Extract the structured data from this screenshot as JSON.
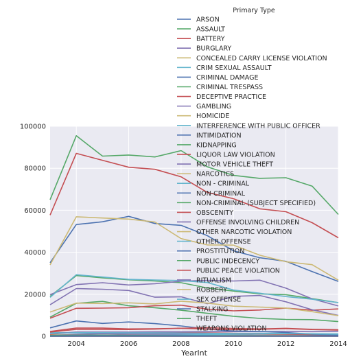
{
  "chart_data": {
    "type": "line",
    "xlabel": "YearInt",
    "ylabel": "",
    "xlim": [
      2003,
      2014
    ],
    "ylim": [
      0,
      100000
    ],
    "x_ticks": [
      2004,
      2006,
      2008,
      2010,
      2012,
      2014
    ],
    "y_ticks": [
      0,
      20000,
      40000,
      60000,
      80000,
      100000
    ],
    "grid": true,
    "legend_title": "Primary Type",
    "legend_position": "top-right",
    "x": [
      2003,
      2004,
      2005,
      2006,
      2007,
      2008,
      2009,
      2010,
      2011,
      2012,
      2013,
      2014
    ],
    "series": [
      {
        "name": "ARSON",
        "color": "#4c72b0",
        "values": [
          700,
          650,
          600,
          550,
          520,
          500,
          470,
          450,
          500,
          470,
          380,
          380
        ]
      },
      {
        "name": "ASSAULT",
        "color": "#55a868",
        "values": [
          19000,
          28900,
          27800,
          26900,
          26300,
          25500,
          23000,
          21500,
          20200,
          19800,
          17900,
          16000
        ]
      },
      {
        "name": "BATTERY",
        "color": "#c44e52",
        "values": [
          57700,
          87100,
          83800,
          80500,
          79500,
          75900,
          68500,
          65500,
          60700,
          59300,
          54100,
          46900
        ]
      },
      {
        "name": "BURGLARY",
        "color": "#8172b2",
        "values": [
          19800,
          24600,
          25500,
          24400,
          25000,
          26200,
          26600,
          26300,
          26700,
          22900,
          17800,
          14400
        ]
      },
      {
        "name": "CONCEALED CARRY LICENSE VIOLATION",
        "color": "#ccb974",
        "values": [
          0,
          0,
          0,
          0,
          0,
          0,
          0,
          0,
          0,
          0,
          0,
          15
        ]
      },
      {
        "name": "CRIM SEXUAL ASSAULT",
        "color": "#64b5cd",
        "values": [
          1800,
          1600,
          1500,
          1500,
          1500,
          1500,
          1400,
          1300,
          1400,
          1400,
          1200,
          1100
        ]
      },
      {
        "name": "CRIMINAL DAMAGE",
        "color": "#4c72b0",
        "values": [
          35000,
          53200,
          54500,
          57100,
          53700,
          52800,
          47900,
          40700,
          37400,
          35700,
          30800,
          26100
        ]
      },
      {
        "name": "CRIMINAL TRESPASS",
        "color": "#55a868",
        "values": [
          9100,
          15700,
          16600,
          14500,
          13600,
          12400,
          10900,
          9500,
          8500,
          8000,
          7900,
          7000
        ]
      },
      {
        "name": "DECEPTIVE PRACTICE",
        "color": "#c44e52",
        "values": [
          8600,
          13300,
          13400,
          13600,
          14500,
          14800,
          12900,
          12100,
          12500,
          13400,
          12400,
          13000
        ]
      },
      {
        "name": "GAMBLING",
        "color": "#8172b2",
        "values": [
          400,
          900,
          1200,
          1000,
          1000,
          1000,
          900,
          700,
          500,
          400,
          300,
          200
        ]
      },
      {
        "name": "HOMICIDE",
        "color": "#ccb974",
        "values": [
          600,
          450,
          450,
          470,
          450,
          510,
          460,
          440,
          430,
          500,
          420,
          410
        ]
      },
      {
        "name": "INTERFERENCE WITH PUBLIC OFFICER",
        "color": "#64b5cd",
        "values": [
          200,
          300,
          300,
          400,
          500,
          600,
          800,
          1000,
          1100,
          1100,
          900,
          900
        ]
      },
      {
        "name": "INTIMIDATION",
        "color": "#4c72b0",
        "values": [
          100,
          150,
          150,
          150,
          200,
          200,
          200,
          200,
          200,
          200,
          200,
          200
        ]
      },
      {
        "name": "KIDNAPPING",
        "color": "#55a868",
        "values": [
          400,
          500,
          450,
          400,
          350,
          300,
          250,
          250,
          250,
          200,
          200,
          200
        ]
      },
      {
        "name": "LIQUOR LAW VIOLATION",
        "color": "#c44e52",
        "values": [
          1000,
          1900,
          1800,
          1800,
          1700,
          1700,
          1600,
          1400,
          1200,
          1000,
          800,
          700
        ]
      },
      {
        "name": "MOTOR VEHICLE THEFT",
        "color": "#8172b2",
        "values": [
          15000,
          22700,
          22400,
          21800,
          18600,
          18800,
          15500,
          19000,
          19400,
          16400,
          12600,
          9900
        ]
      },
      {
        "name": "NARCOTICS",
        "color": "#ccb974",
        "values": [
          34000,
          56900,
          56300,
          55800,
          54400,
          46500,
          43500,
          43400,
          38600,
          35500,
          34100,
          26700
        ]
      },
      {
        "name": "NON - CRIMINAL",
        "color": "#64b5cd",
        "values": [
          0,
          0,
          0,
          0,
          0,
          0,
          0,
          0,
          0,
          50,
          30,
          20
        ]
      },
      {
        "name": "NON-CRIMINAL",
        "color": "#4c72b0",
        "values": [
          0,
          0,
          0,
          0,
          0,
          0,
          0,
          0,
          20,
          60,
          50,
          30
        ]
      },
      {
        "name": "NON-CRIMINAL (SUBJECT SPECIFIED)",
        "color": "#55a868",
        "values": [
          0,
          0,
          0,
          0,
          0,
          0,
          0,
          0,
          0,
          0,
          5,
          3
        ]
      },
      {
        "name": "OBSCENITY",
        "color": "#c44e52",
        "values": [
          10,
          20,
          20,
          20,
          20,
          20,
          20,
          20,
          20,
          30,
          30,
          30
        ]
      },
      {
        "name": "OFFENSE INVOLVING CHILDREN",
        "color": "#8172b2",
        "values": [
          1200,
          2000,
          2000,
          2000,
          2100,
          2100,
          2200,
          2200,
          2200,
          2300,
          2200,
          2300
        ]
      },
      {
        "name": "OTHER NARCOTIC VIOLATION",
        "color": "#ccb974",
        "values": [
          5,
          10,
          10,
          10,
          10,
          10,
          10,
          10,
          10,
          10,
          10,
          5
        ]
      },
      {
        "name": "OTHER OFFENSE",
        "color": "#64b5cd",
        "values": [
          18500,
          29300,
          28200,
          27100,
          26800,
          26500,
          25600,
          22000,
          20500,
          18900,
          17600,
          16000
        ]
      },
      {
        "name": "PROSTITUTION",
        "color": "#4c72b0",
        "values": [
          4000,
          7300,
          6100,
          6800,
          6000,
          4900,
          3400,
          2500,
          2300,
          1800,
          1000,
          750
        ]
      },
      {
        "name": "PUBLIC INDECENCY",
        "color": "#55a868",
        "values": [
          10,
          20,
          20,
          20,
          20,
          15,
          15,
          15,
          15,
          15,
          15,
          15
        ]
      },
      {
        "name": "PUBLIC PEACE VIOLATION",
        "color": "#c44e52",
        "values": [
          2300,
          3900,
          3900,
          3500,
          3600,
          3800,
          3400,
          3100,
          3300,
          3600,
          3200,
          2900
        ]
      },
      {
        "name": "RITUALISM",
        "color": "#8172b2",
        "values": [
          5,
          5,
          5,
          5,
          5,
          5,
          5,
          5,
          5,
          5,
          5,
          5
        ]
      },
      {
        "name": "ROBBERY",
        "color": "#ccb974",
        "values": [
          11500,
          15800,
          15600,
          15900,
          15400,
          16700,
          15800,
          14300,
          13900,
          13400,
          11700,
          9800
        ]
      },
      {
        "name": "SEX OFFENSE",
        "color": "#64b5cd",
        "values": [
          1300,
          1700,
          1700,
          1600,
          1600,
          1500,
          1400,
          1300,
          1300,
          1200,
          1100,
          1000
        ]
      },
      {
        "name": "STALKING",
        "color": "#4c72b0",
        "values": [
          100,
          200,
          200,
          200,
          200,
          200,
          200,
          200,
          200,
          200,
          200,
          200
        ]
      },
      {
        "name": "THEFT",
        "color": "#55a868",
        "values": [
          65000,
          95500,
          85800,
          86300,
          85400,
          88400,
          80700,
          76600,
          75200,
          75500,
          71500,
          58000
        ]
      },
      {
        "name": "WEAPONS VIOLATION",
        "color": "#c44e52",
        "values": [
          2000,
          3300,
          3300,
          3200,
          3400,
          3800,
          4100,
          3700,
          3500,
          3800,
          3300,
          3100
        ]
      }
    ]
  }
}
